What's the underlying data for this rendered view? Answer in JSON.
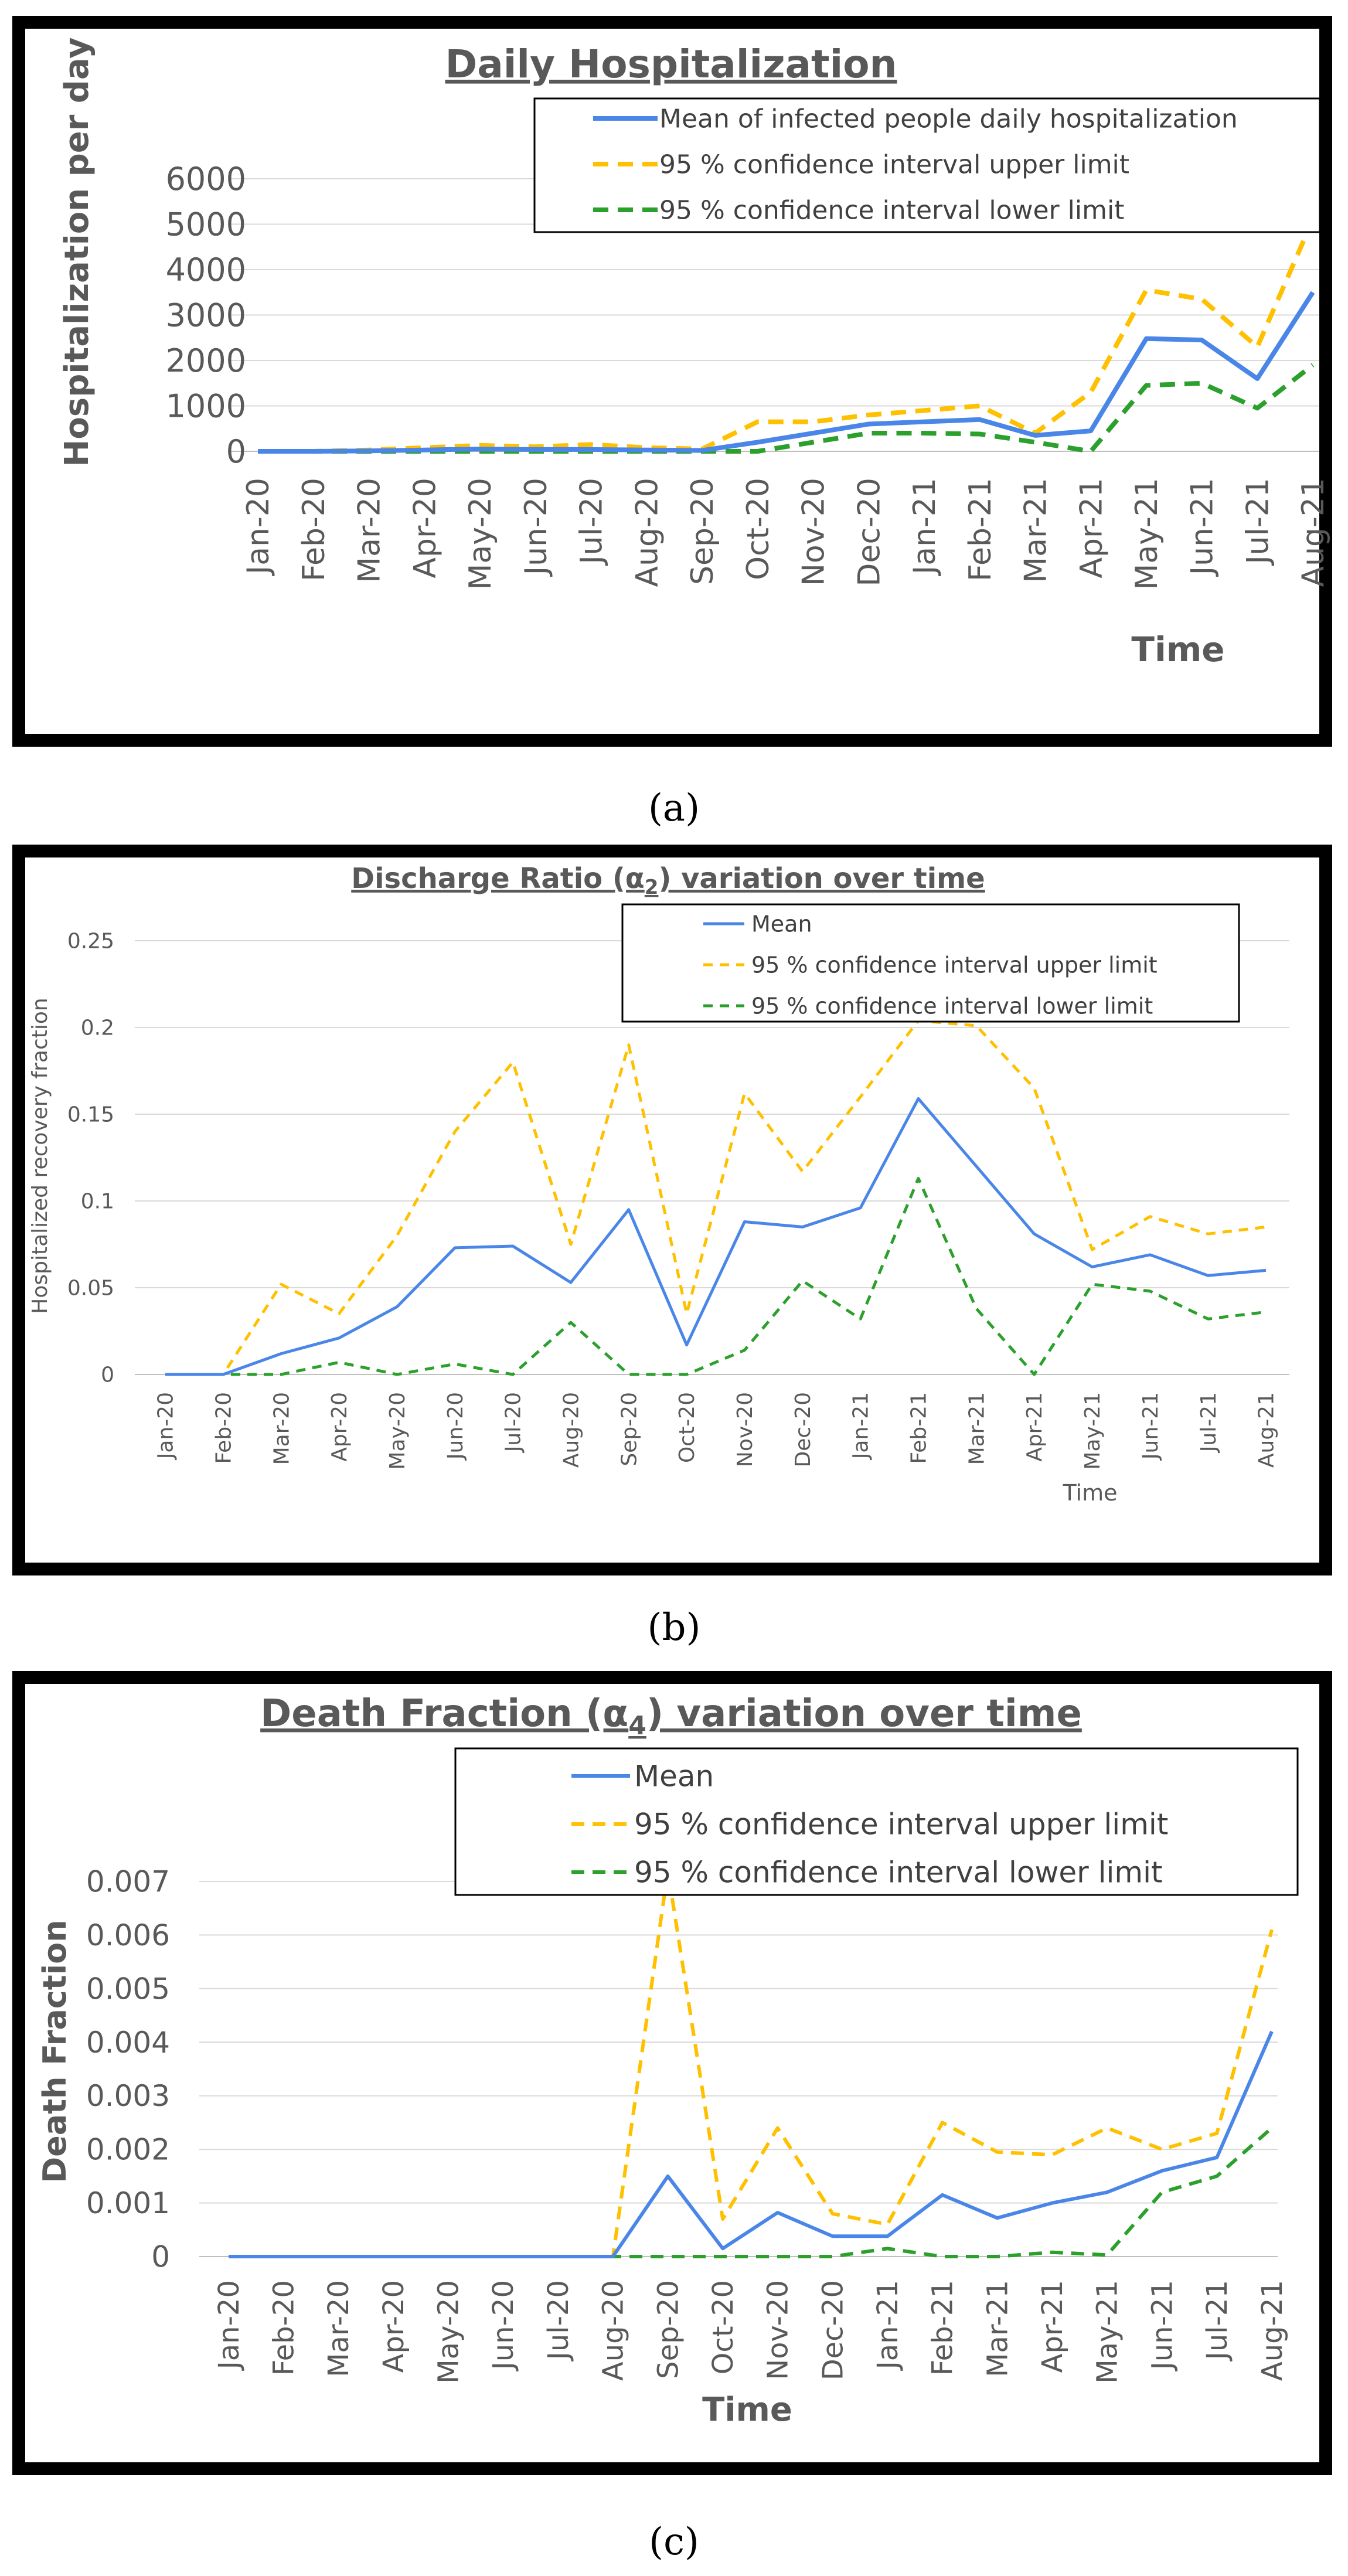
{
  "colors": {
    "mean": "#4a86e8",
    "upper": "#ffc000",
    "lower": "#2ca02c",
    "grid": "#d9d9d9",
    "frame": "#000000",
    "text": "#595959"
  },
  "chart_data": [
    {
      "type": "line",
      "title": "Daily Hospitalization",
      "xlabel": "Time",
      "ylabel": "Hospitalization per day",
      "ylim": [
        0,
        6000
      ],
      "yticks": [
        0,
        1000,
        2000,
        3000,
        4000,
        5000,
        6000
      ],
      "ytick_labels": [
        "0",
        "1000",
        "2000",
        "3000",
        "4000",
        "5000",
        "6000"
      ],
      "categories": [
        "Jan-20",
        "Feb-20",
        "Mar-20",
        "Apr-20",
        "May-20",
        "Jun-20",
        "Jul-20",
        "Aug-20",
        "Sep-20",
        "Oct-20",
        "Nov-20",
        "Dec-20",
        "Jan-21",
        "Feb-21",
        "Mar-21",
        "Apr-21",
        "May-21",
        "Jun-21",
        "Jul-21",
        "Aug-21"
      ],
      "series": [
        {
          "name": "Mean of infected people daily hospitalization",
          "style": "solid",
          "color_key": "mean",
          "values": [
            0,
            0,
            10,
            30,
            50,
            40,
            40,
            30,
            20,
            200,
            400,
            600,
            650,
            700,
            350,
            450,
            2480,
            2450,
            1600,
            3500
          ]
        },
        {
          "name": "95 % confidence interval upper limit",
          "style": "dashed",
          "color_key": "upper",
          "values": [
            0,
            0,
            30,
            80,
            130,
            100,
            150,
            80,
            50,
            650,
            650,
            800,
            900,
            1000,
            400,
            1300,
            3550,
            3350,
            2300,
            5100
          ]
        },
        {
          "name": "95 % confidence interval lower limit",
          "style": "dashed",
          "color_key": "lower",
          "values": [
            0,
            0,
            0,
            0,
            0,
            0,
            0,
            0,
            0,
            0,
            200,
            400,
            400,
            380,
            200,
            0,
            1450,
            1500,
            950,
            1900
          ]
        }
      ],
      "caption": "(a)"
    },
    {
      "type": "line",
      "title": "Discharge Ratio (α2) variation over time",
      "title_main": "Discharge Ratio (α",
      "title_sub": "2",
      "title_rest": ") variation over time",
      "xlabel": "Time",
      "ylabel": "Hospitalized recovery fraction",
      "ylim": [
        0,
        0.25
      ],
      "yticks": [
        0,
        0.05,
        0.1,
        0.15,
        0.2,
        0.25
      ],
      "ytick_labels": [
        "0",
        "0.05",
        "0.1",
        "0.15",
        "0.2",
        "0.25"
      ],
      "categories": [
        "Jan-20",
        "Feb-20",
        "Mar-20",
        "Apr-20",
        "May-20",
        "Jun-20",
        "Jul-20",
        "Aug-20",
        "Sep-20",
        "Oct-20",
        "Nov-20",
        "Dec-20",
        "Jan-21",
        "Feb-21",
        "Mar-21",
        "Apr-21",
        "May-21",
        "Jun-21",
        "Jul-21",
        "Aug-21"
      ],
      "series": [
        {
          "name": "Mean",
          "style": "solid",
          "color_key": "mean",
          "values": [
            0,
            0,
            0.012,
            0.021,
            0.039,
            0.073,
            0.074,
            0.053,
            0.095,
            0.017,
            0.088,
            0.085,
            0.096,
            0.159,
            0.12,
            0.081,
            0.062,
            0.069,
            0.057,
            0.06
          ]
        },
        {
          "name": "95 % confidence interval upper limit",
          "style": "dashed",
          "color_key": "upper",
          "values": [
            0,
            0,
            0.052,
            0.035,
            0.08,
            0.14,
            0.18,
            0.075,
            0.19,
            0.035,
            0.162,
            0.117,
            0.16,
            0.204,
            0.201,
            0.165,
            0.072,
            0.091,
            0.081,
            0.085
          ]
        },
        {
          "name": "95 % confidence interval lower limit",
          "style": "dashed",
          "color_key": "lower",
          "values": [
            0,
            0,
            0,
            0.007,
            0,
            0.006,
            0,
            0.03,
            0,
            0,
            0.014,
            0.054,
            0.032,
            0.113,
            0.038,
            0,
            0.052,
            0.048,
            0.032,
            0.036
          ]
        }
      ],
      "caption": "(b)"
    },
    {
      "type": "line",
      "title": "Death Fraction (α4) variation over time",
      "title_main": "Death Fraction (α",
      "title_sub": "4",
      "title_rest": ")  variation over time",
      "xlabel": "Time",
      "ylabel": "Death Fraction",
      "ylim": [
        0,
        0.007
      ],
      "yticks": [
        0,
        0.001,
        0.002,
        0.003,
        0.004,
        0.005,
        0.006,
        0.007
      ],
      "ytick_labels": [
        "0",
        "0.001",
        "0.002",
        "0.003",
        "0.004",
        "0.005",
        "0.006",
        "0.007"
      ],
      "categories": [
        "Jan-20",
        "Feb-20",
        "Mar-20",
        "Apr-20",
        "May-20",
        "Jun-20",
        "Jul-20",
        "Aug-20",
        "Sep-20",
        "Oct-20",
        "Nov-20",
        "Dec-20",
        "Jan-21",
        "Feb-21",
        "Mar-21",
        "Apr-21",
        "May-21",
        "Jun-21",
        "Jul-21",
        "Aug-21"
      ],
      "series": [
        {
          "name": "Mean",
          "style": "solid",
          "color_key": "mean",
          "values": [
            0,
            0,
            0,
            0,
            0,
            0,
            0,
            0,
            0.0015,
            0.00015,
            0.00082,
            0.00038,
            0.00038,
            0.00115,
            0.00072,
            0.001,
            0.0012,
            0.0016,
            0.00185,
            0.0042
          ]
        },
        {
          "name": "95 % confidence interval upper limit",
          "style": "dashed",
          "color_key": "upper",
          "values": [
            0,
            0,
            0,
            0,
            0,
            0,
            0,
            0,
            0.0072,
            0.0007,
            0.0024,
            0.0008,
            0.0006,
            0.0025,
            0.00195,
            0.0019,
            0.0024,
            0.002,
            0.0023,
            0.0061
          ]
        },
        {
          "name": "95 % confidence interval lower limit",
          "style": "dashed",
          "color_key": "lower",
          "values": [
            0,
            0,
            0,
            0,
            0,
            0,
            0,
            0,
            0,
            0,
            0,
            0,
            0.00015,
            0,
            0,
            8e-05,
            3e-05,
            0.0012,
            0.0015,
            0.0024
          ]
        }
      ],
      "caption": "(c)"
    }
  ]
}
